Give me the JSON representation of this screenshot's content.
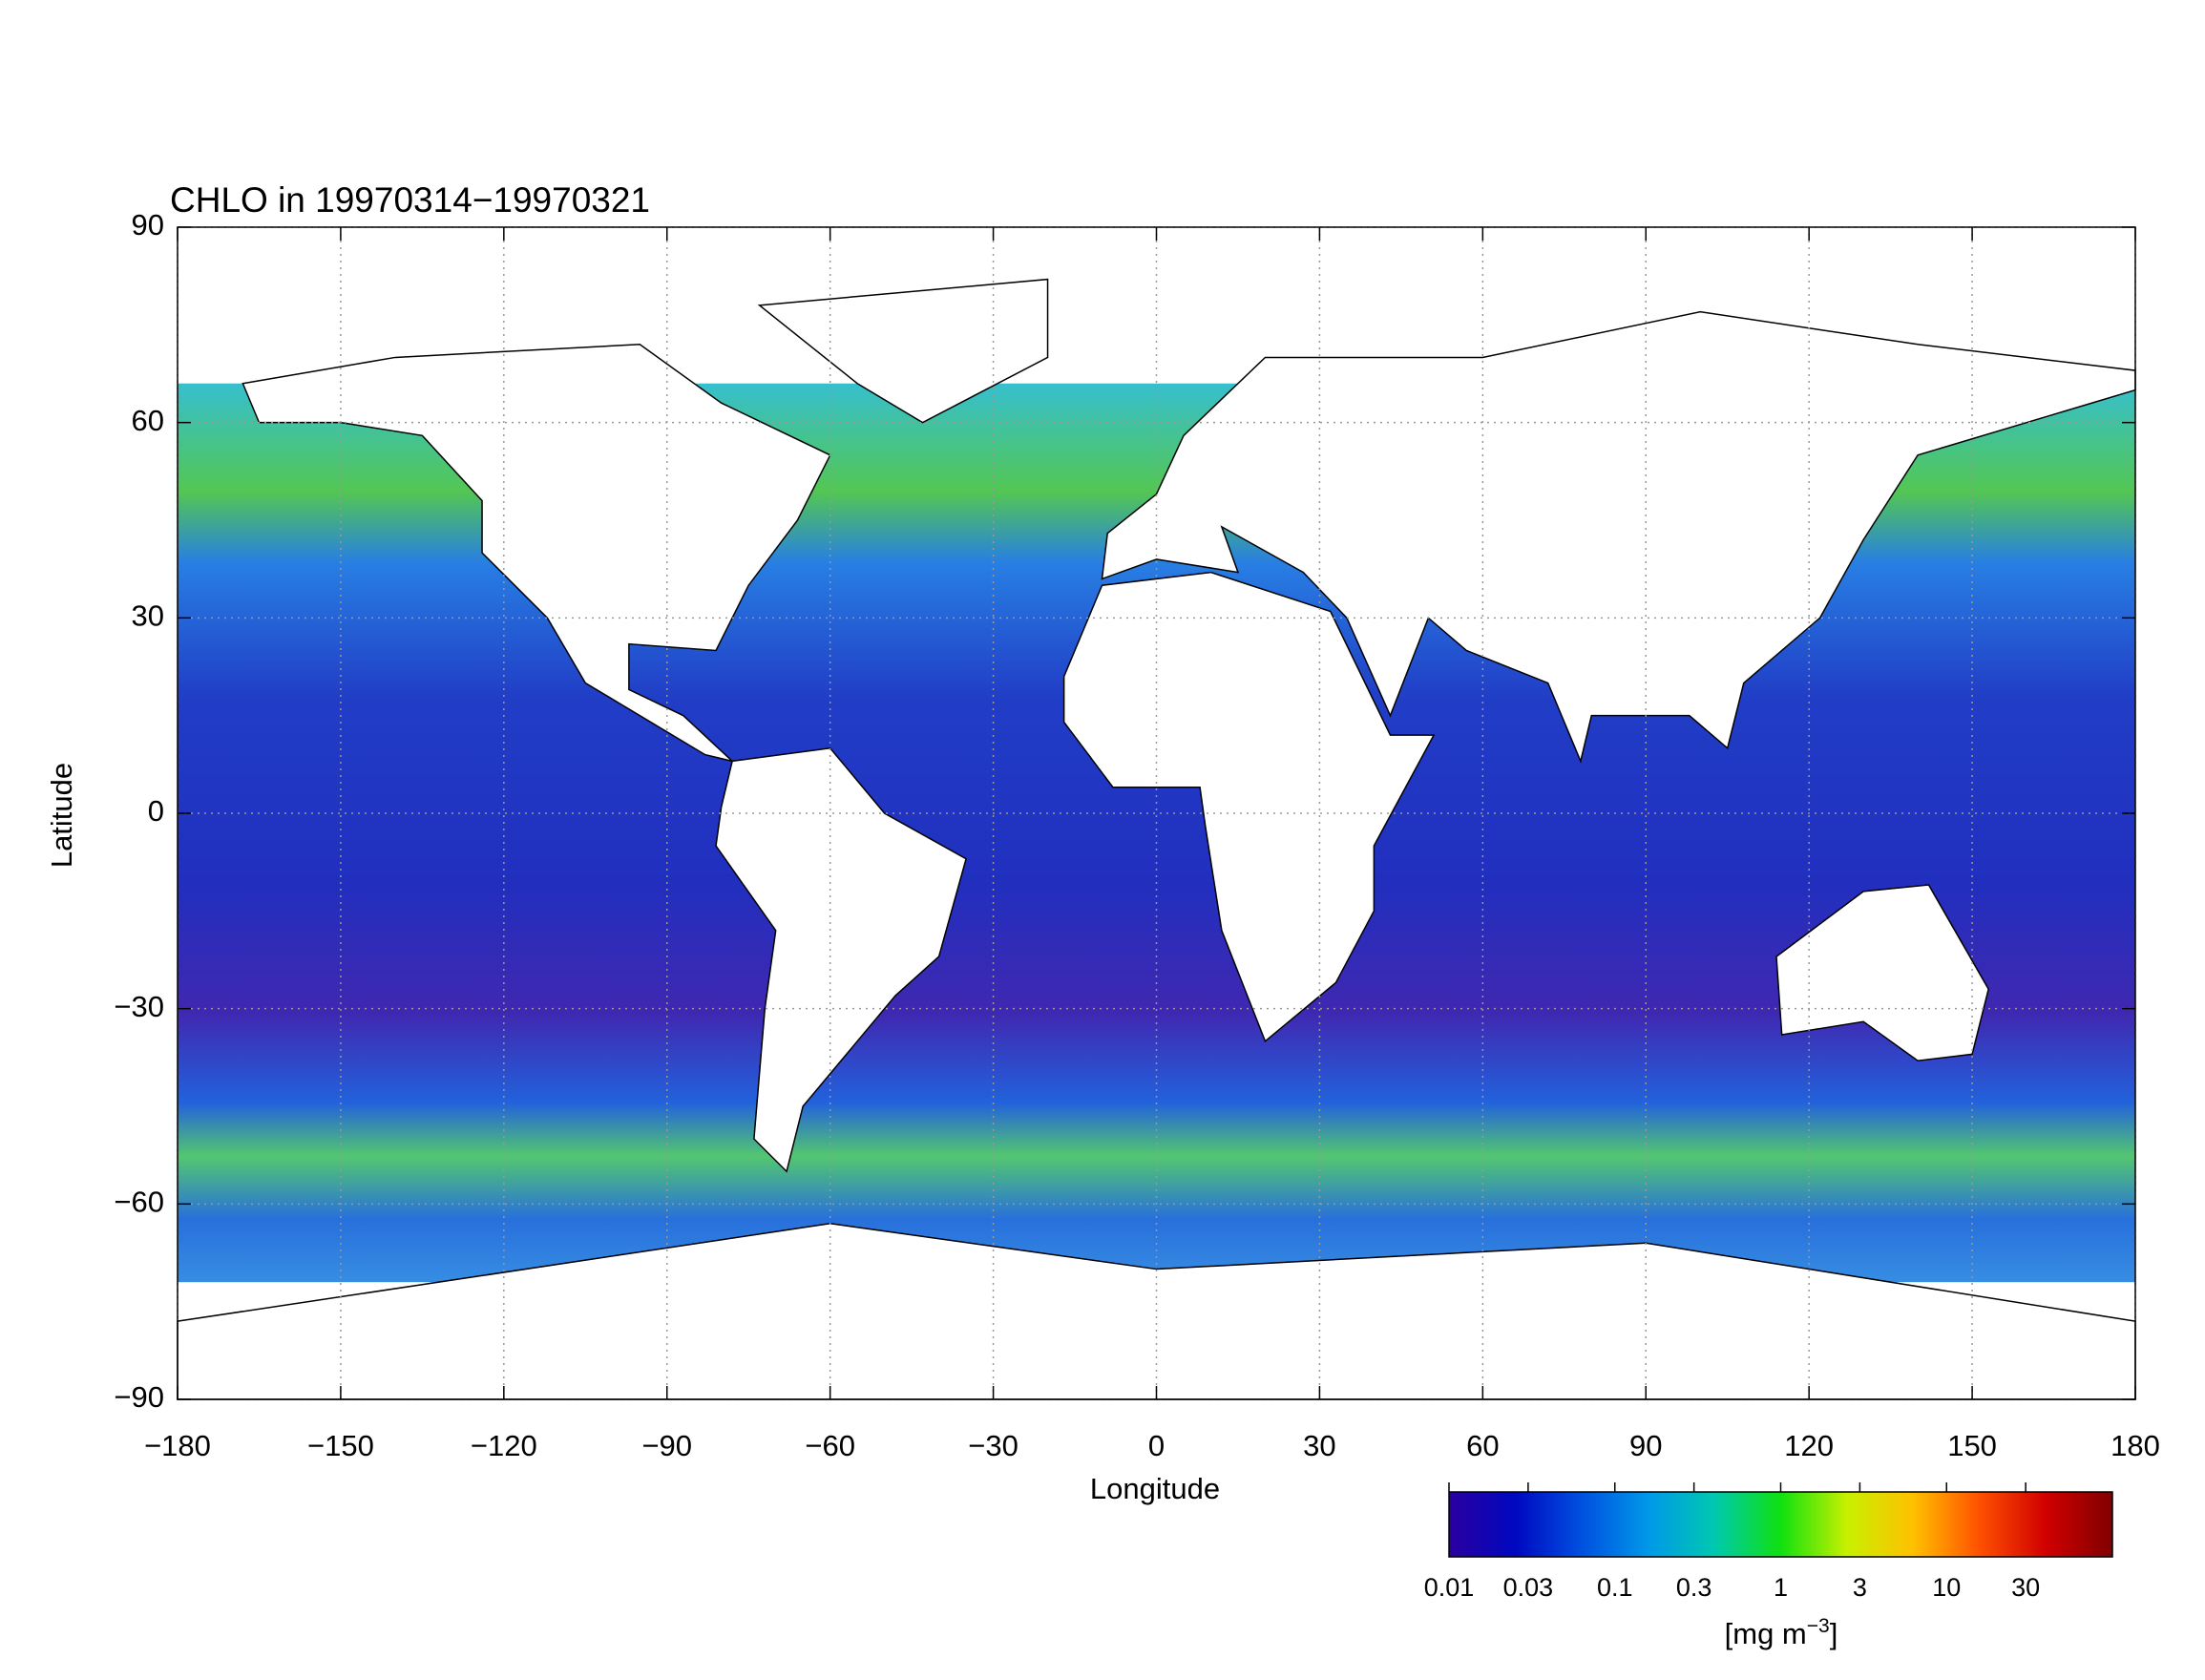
{
  "chart_data": {
    "type": "map",
    "title": "CHLO in 19970314−19970321",
    "xlabel": "Longitude",
    "ylabel": "Latitude",
    "xlim": [
      -180,
      180
    ],
    "ylim": [
      -90,
      90
    ],
    "xticks": [
      {
        "value": -180,
        "label": "−180"
      },
      {
        "value": -150,
        "label": "−150"
      },
      {
        "value": -120,
        "label": "−120"
      },
      {
        "value": -90,
        "label": "−90"
      },
      {
        "value": -60,
        "label": "−60"
      },
      {
        "value": -30,
        "label": "−30"
      },
      0,
      30,
      60,
      90,
      120,
      150,
      180
    ],
    "yticks": [
      {
        "value": -90,
        "label": "−90"
      },
      {
        "value": -60,
        "label": "−60"
      },
      {
        "value": -30,
        "label": "−30"
      },
      0,
      30,
      60,
      90
    ],
    "grid": true,
    "colorbar": {
      "clim": [
        0.01,
        100
      ],
      "log": true,
      "ticks": [
        0.01,
        0.03,
        0.1,
        0.3,
        1,
        3,
        10,
        30
      ],
      "label_base": "[mg m",
      "label_exponent": "−3",
      "label_close": "]",
      "colormap": [
        "#2a00a0",
        "#0008c0",
        "#0050e0",
        "#0098e8",
        "#00c8b0",
        "#10e010",
        "#c8f000",
        "#ffc000",
        "#ff5000",
        "#d00000",
        "#800000"
      ]
    }
  }
}
